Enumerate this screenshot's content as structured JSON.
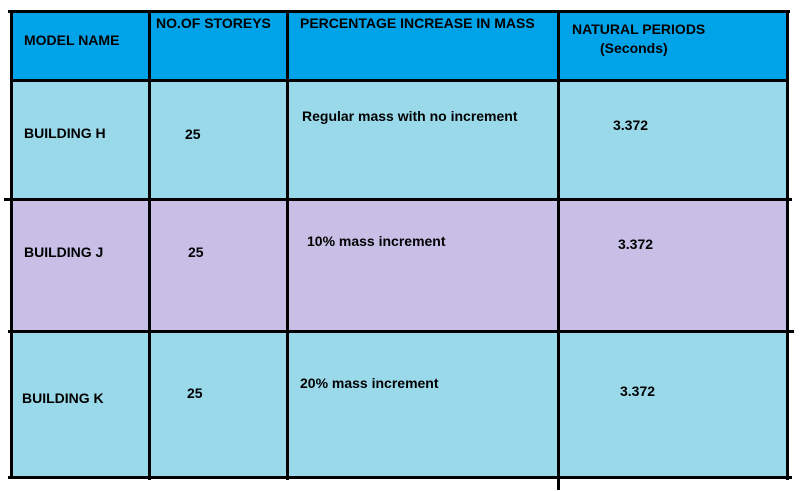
{
  "table": {
    "headers": {
      "model_name": "MODEL NAME",
      "storeys": "NO.OF STOREYS",
      "mass_increase": "PERCENTAGE INCREASE IN MASS",
      "natural_periods_line1": "NATURAL PERIODS",
      "natural_periods_line2": "(Seconds)"
    },
    "rows": [
      {
        "model_name": "BUILDING H",
        "storeys": "25",
        "mass_increase": "Regular mass with no increment",
        "natural_period": "3.372"
      },
      {
        "model_name": "BUILDING J",
        "storeys": "25",
        "mass_increase": "10% mass increment",
        "natural_period": "3.372"
      },
      {
        "model_name": "BUILDING K",
        "storeys": "25",
        "mass_increase": "20% mass increment",
        "natural_period": "3.372"
      }
    ]
  },
  "colors": {
    "header": "#00a2e8",
    "row_h": "#99d9ea",
    "row_j": "#c8bfe7",
    "row_k": "#99d9ea",
    "lines": "#000000"
  }
}
